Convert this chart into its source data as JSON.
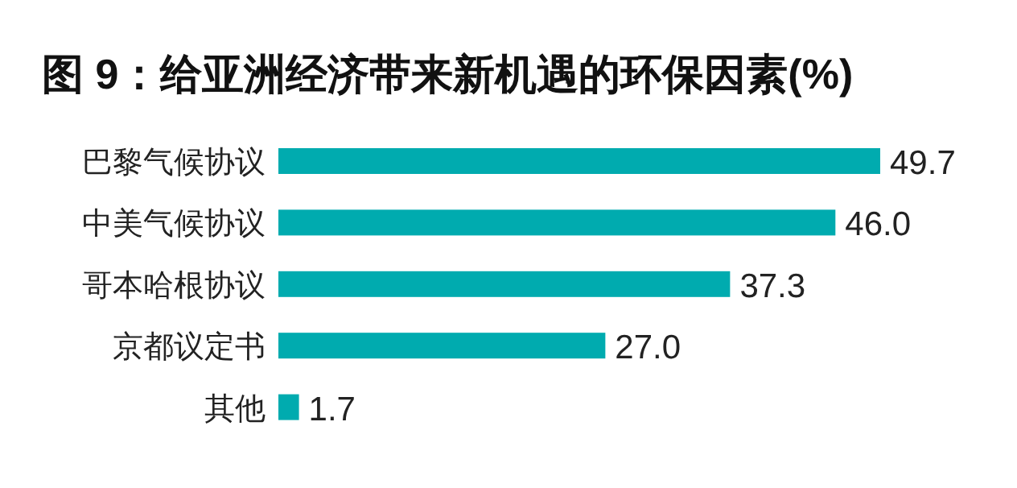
{
  "chart_data": {
    "type": "bar",
    "orientation": "horizontal",
    "title": "图 9：给亚洲经济带来新机遇的环保因素(%)",
    "categories": [
      "巴黎气候协议",
      "中美气候协议",
      "哥本哈根协议",
      "京都议定书",
      "其他"
    ],
    "values": [
      49.7,
      46.0,
      37.3,
      27.0,
      1.7
    ],
    "value_labels": [
      "49.7",
      "46.0",
      "37.3",
      "27.0",
      "1.7"
    ],
    "color": "#00abaf"
  }
}
